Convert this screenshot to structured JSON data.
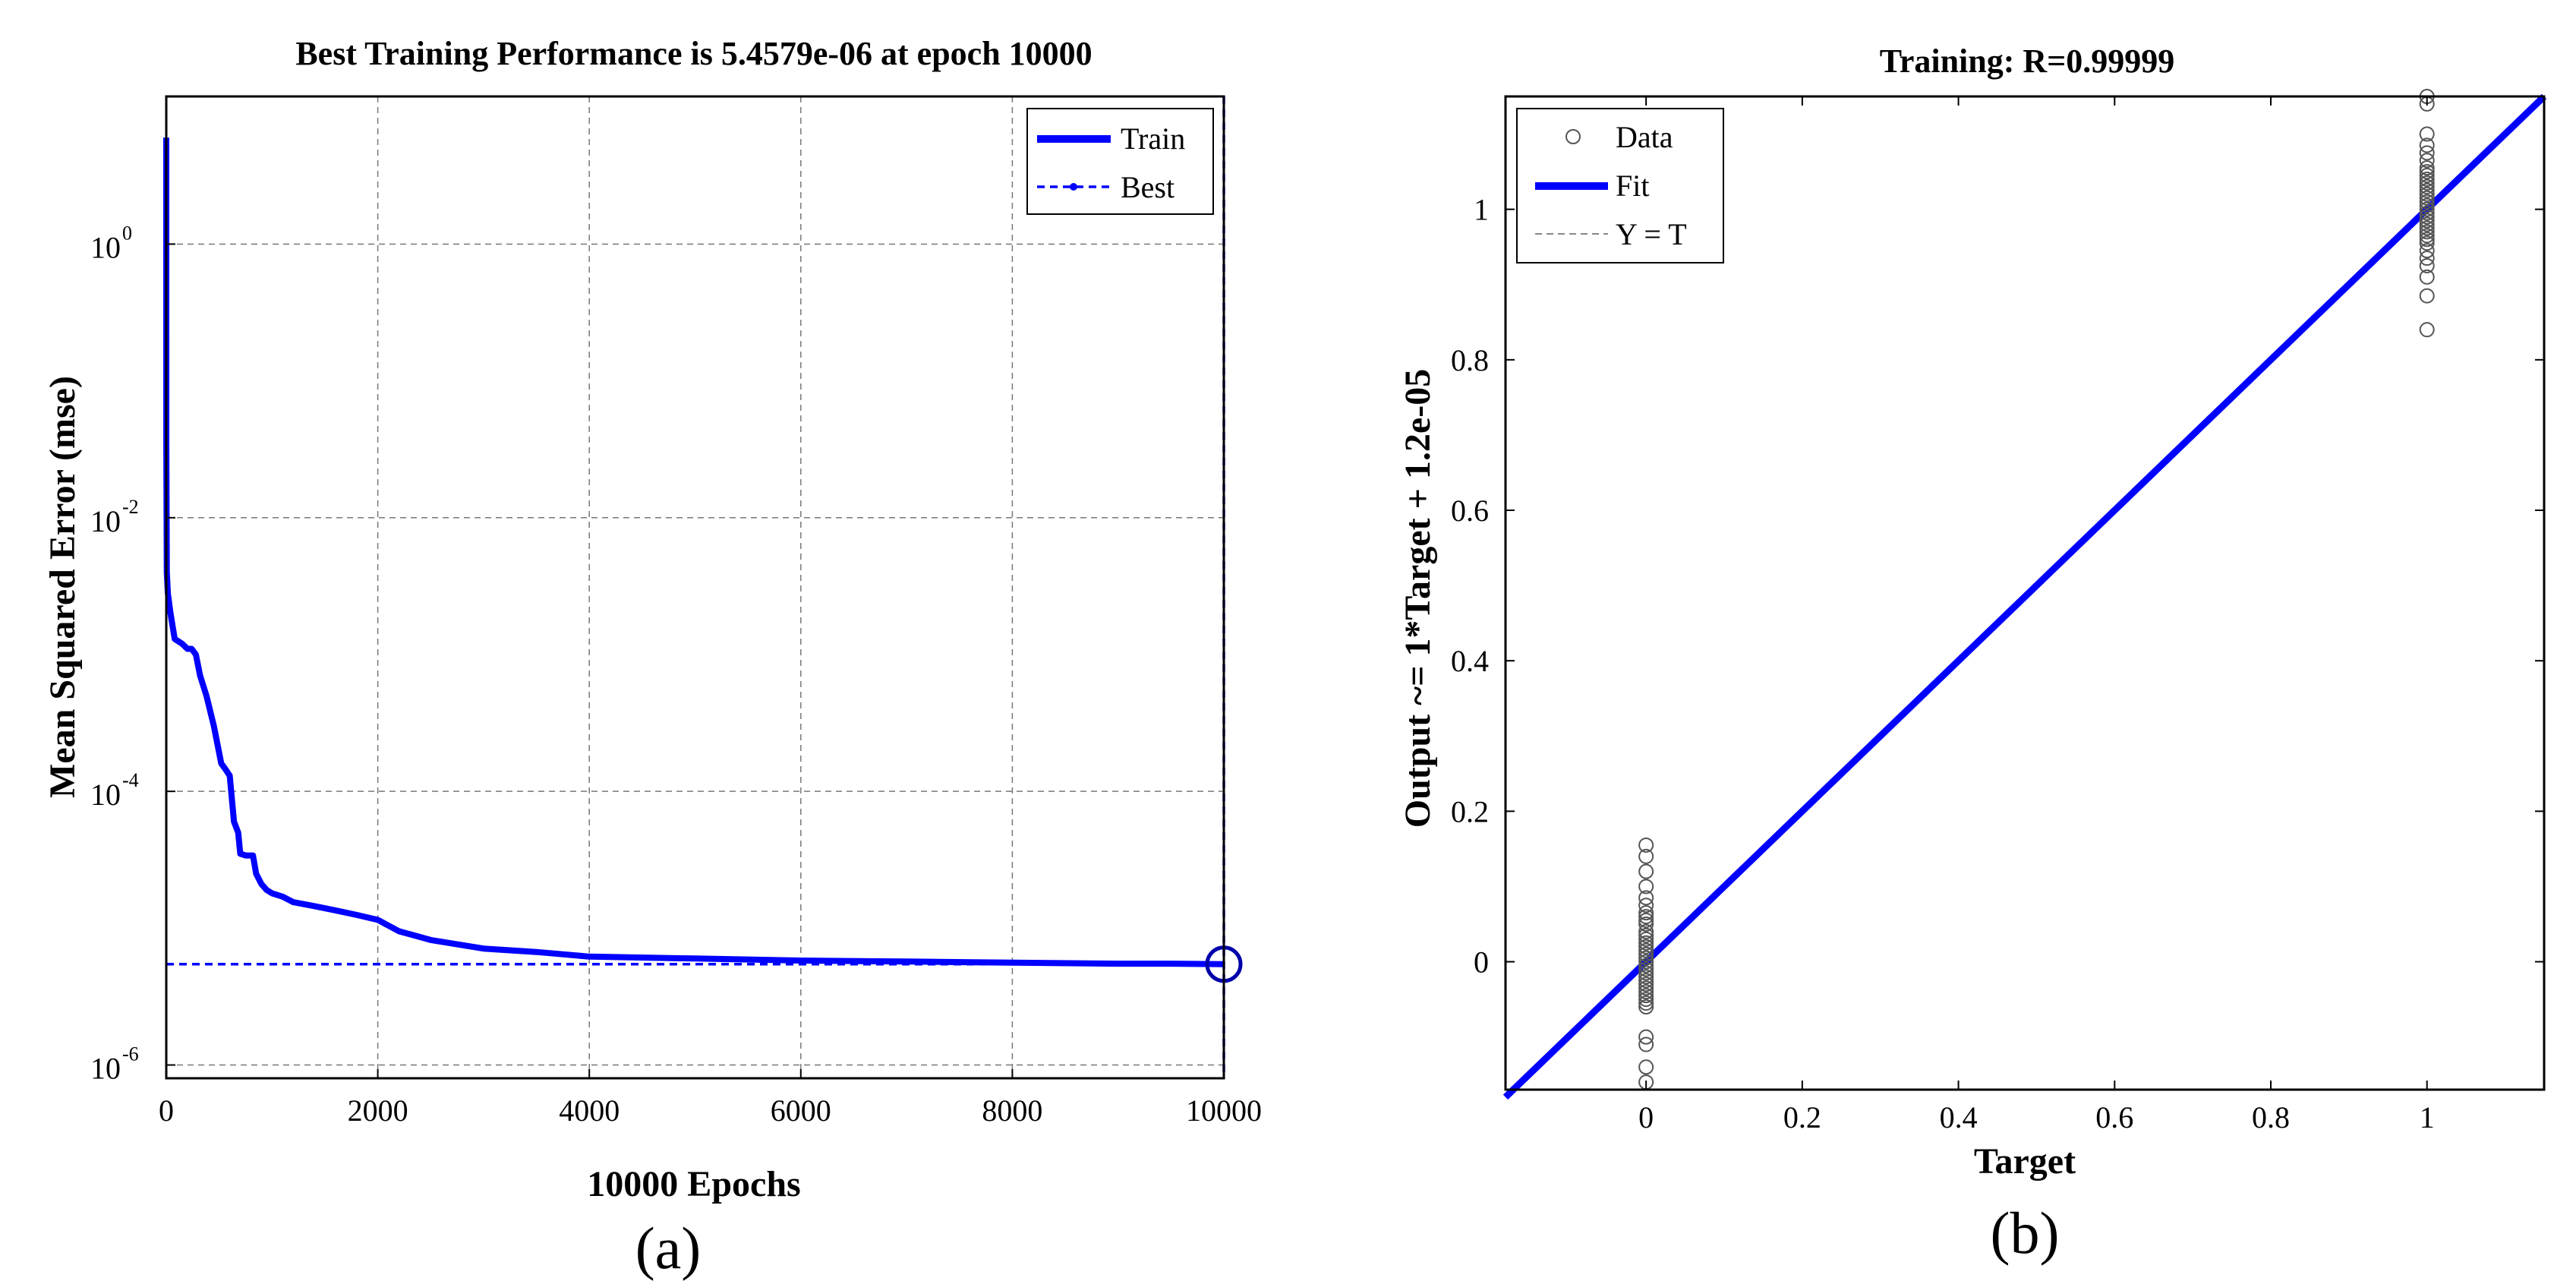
{
  "chart_data": [
    {
      "type": "line",
      "title": "Best Training Performance is 5.4579e-06 at epoch 10000",
      "xlabel": "10000 Epochs",
      "ylabel": "Mean Squared Error  (mse)",
      "xlim": [
        0,
        10000
      ],
      "ylim": [
        8e-07,
        12
      ],
      "yscale": "log",
      "grid": true,
      "legend_position": "top-right",
      "x_ticks": [
        "0",
        "2000",
        "4000",
        "6000",
        "8000",
        "10000"
      ],
      "y_ticks": [
        {
          "base": "10",
          "exp": "0",
          "value": 1
        },
        {
          "base": "10",
          "exp": "-2",
          "value": 0.01
        },
        {
          "base": "10",
          "exp": "-4",
          "value": 0.0001
        },
        {
          "base": "10",
          "exp": "-6",
          "value": 1e-06
        }
      ],
      "series": [
        {
          "name": "Train",
          "color": "#0000ff",
          "style": "solid",
          "x": [
            0,
            1,
            5,
            15,
            40,
            80,
            150,
            200,
            240,
            280,
            320,
            380,
            450,
            520,
            560,
            600,
            640,
            680,
            700,
            750,
            820,
            850,
            900,
            950,
            1000,
            1100,
            1200,
            1400,
            1600,
            1800,
            2000,
            2200,
            2500,
            3000,
            3500,
            4000,
            5000,
            6000,
            7000,
            8000,
            9000,
            9500,
            10000
          ],
          "y": [
            6,
            0.03,
            0.004,
            0.0028,
            0.002,
            0.0013,
            0.0012,
            0.0011,
            0.0011,
            0.001,
            0.0007,
            0.0005,
            0.0003,
            0.00016,
            0.000145,
            0.00013,
            6e-05,
            5e-05,
            3.5e-05,
            3.4e-05,
            3.4e-05,
            2.5e-05,
            2.1e-05,
            1.9e-05,
            1.8e-05,
            1.7e-05,
            1.55e-05,
            1.45e-05,
            1.35e-05,
            1.25e-05,
            1.15e-05,
            9.5e-06,
            8.2e-06,
            7.1e-06,
            6.7e-06,
            6.2e-06,
            6e-06,
            5.8e-06,
            5.7e-06,
            5.6e-06,
            5.5e-06,
            5.5e-06,
            5.4579e-06
          ]
        },
        {
          "name": "Best",
          "color": "#0000ff",
          "style": "dashed",
          "best_epoch": 10000,
          "best_value": 5.4579e-06
        }
      ],
      "caption": "(a)"
    },
    {
      "type": "scatter",
      "title": "Training: R=0.99999",
      "xlabel": "Target",
      "ylabel": "Output ~= 1*Target + 1.2e-05",
      "xlim": [
        -0.18,
        1.15
      ],
      "ylim": [
        -0.17,
        1.15
      ],
      "grid": false,
      "legend_position": "top-left",
      "x_ticks": [
        "0",
        "0.2",
        "0.4",
        "0.6",
        "0.8",
        "1"
      ],
      "y_ticks": [
        "0",
        "0.2",
        "0.4",
        "0.6",
        "0.8",
        "1"
      ],
      "series": [
        {
          "name": "Data",
          "marker": "circle",
          "color": "#555555",
          "points": [
            [
              0,
              -0.16
            ],
            [
              0,
              -0.14
            ],
            [
              0,
              -0.11
            ],
            [
              0,
              -0.1
            ],
            [
              0,
              -0.06
            ],
            [
              0,
              -0.055
            ],
            [
              0,
              -0.05
            ],
            [
              0,
              -0.045
            ],
            [
              0,
              -0.04
            ],
            [
              0,
              -0.035
            ],
            [
              0,
              -0.03
            ],
            [
              0,
              -0.025
            ],
            [
              0,
              -0.02
            ],
            [
              0,
              -0.015
            ],
            [
              0,
              -0.01
            ],
            [
              0,
              -0.005
            ],
            [
              0,
              0
            ],
            [
              0,
              0.005
            ],
            [
              0,
              0.01
            ],
            [
              0,
              0.015
            ],
            [
              0,
              0.02
            ],
            [
              0,
              0.025
            ],
            [
              0,
              0.03
            ],
            [
              0,
              0.035
            ],
            [
              0,
              0.04
            ],
            [
              0,
              0.05
            ],
            [
              0,
              0.055
            ],
            [
              0,
              0.06
            ],
            [
              0,
              0.065
            ],
            [
              0,
              0.075
            ],
            [
              0,
              0.085
            ],
            [
              0,
              0.1
            ],
            [
              0,
              0.12
            ],
            [
              0,
              0.14
            ],
            [
              0,
              0.155
            ],
            [
              1,
              0.84
            ],
            [
              1,
              0.885
            ],
            [
              1,
              0.91
            ],
            [
              1,
              0.925
            ],
            [
              1,
              0.935
            ],
            [
              1,
              0.945
            ],
            [
              1,
              0.955
            ],
            [
              1,
              0.96
            ],
            [
              1,
              0.965
            ],
            [
              1,
              0.97
            ],
            [
              1,
              0.975
            ],
            [
              1,
              0.98
            ],
            [
              1,
              0.985
            ],
            [
              1,
              0.99
            ],
            [
              1,
              0.995
            ],
            [
              1,
              1.0
            ],
            [
              1,
              1.005
            ],
            [
              1,
              1.01
            ],
            [
              1,
              1.015
            ],
            [
              1,
              1.02
            ],
            [
              1,
              1.025
            ],
            [
              1,
              1.03
            ],
            [
              1,
              1.035
            ],
            [
              1,
              1.04
            ],
            [
              1,
              1.045
            ],
            [
              1,
              1.05
            ],
            [
              1,
              1.055
            ],
            [
              1,
              1.065
            ],
            [
              1,
              1.075
            ],
            [
              1,
              1.085
            ],
            [
              1,
              1.1
            ],
            [
              1,
              1.14
            ],
            [
              1,
              1.15
            ]
          ]
        },
        {
          "name": "Fit",
          "color": "#0000ff",
          "style": "solid",
          "slope": 1,
          "intercept": 1.2e-05
        },
        {
          "name": "Y = T",
          "color": "#888888",
          "style": "dashed"
        }
      ],
      "caption": "(b)"
    }
  ]
}
